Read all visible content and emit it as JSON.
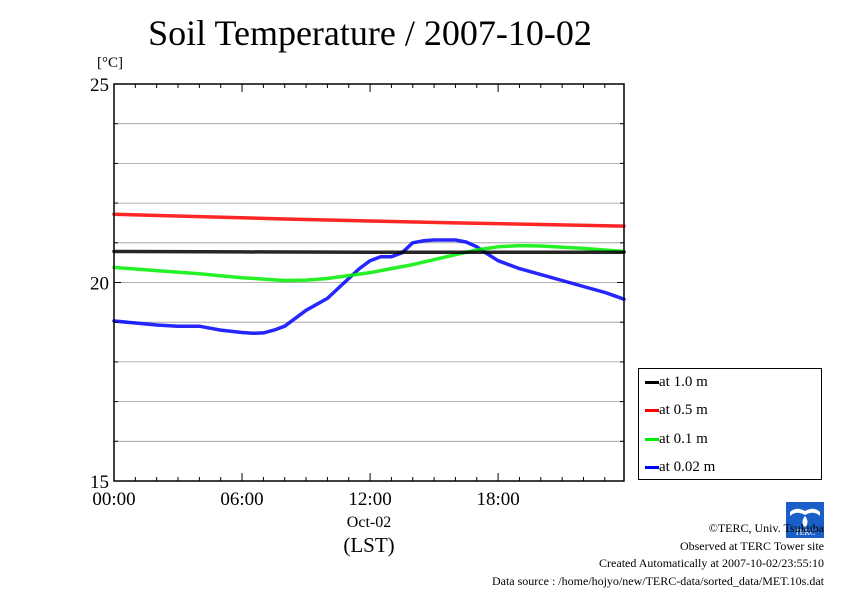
{
  "header": {
    "title": "Soil Temperature / 2007-10-02",
    "unit": "[°C]"
  },
  "chart_data": {
    "type": "line",
    "title": "Soil Temperature / 2007-10-02",
    "ylabel": "[°C]",
    "xlabel": "(LST)",
    "date_label": "Oct-02",
    "xlim": [
      0,
      23.9
    ],
    "ylim": [
      15,
      25
    ],
    "x_ticks": [
      {
        "value": 0,
        "label": "00:00"
      },
      {
        "value": 6,
        "label": "06:00"
      },
      {
        "value": 12,
        "label": "12:00"
      },
      {
        "value": 18,
        "label": "18:00"
      }
    ],
    "y_ticks": [
      {
        "value": 15,
        "label": "15"
      },
      {
        "value": 20,
        "label": "20"
      },
      {
        "value": 25,
        "label": "25"
      }
    ],
    "grid": true,
    "legend_position": "bottom-right, outside plot",
    "series": [
      {
        "name": "at 1.0 m",
        "color": "#000000",
        "x": [
          0,
          6,
          12,
          18,
          23.9
        ],
        "values": [
          20.78,
          20.77,
          20.76,
          20.76,
          20.76
        ]
      },
      {
        "name": "at 0.5 m",
        "color": "#ff0000",
        "x": [
          0,
          4,
          8,
          12,
          16,
          20,
          23.9
        ],
        "values": [
          21.72,
          21.66,
          21.6,
          21.55,
          21.5,
          21.46,
          21.42
        ]
      },
      {
        "name": "at 0.1 m",
        "color": "#00ee00",
        "x": [
          0,
          2,
          4,
          6,
          8,
          9,
          10,
          12,
          14,
          16,
          17,
          18,
          19,
          20,
          22,
          23.9
        ],
        "values": [
          20.38,
          20.3,
          20.22,
          20.12,
          20.05,
          20.06,
          20.1,
          20.25,
          20.45,
          20.7,
          20.82,
          20.9,
          20.93,
          20.92,
          20.86,
          20.78
        ]
      },
      {
        "name": "at 0.02 m",
        "color": "#0000ff",
        "x": [
          0,
          1,
          2,
          3,
          4,
          4.5,
          5,
          6,
          6.5,
          7,
          7.5,
          8,
          9,
          10,
          11,
          11.5,
          12,
          12.5,
          13,
          13.5,
          14,
          14.5,
          15,
          15.5,
          16,
          16.5,
          17,
          17.5,
          18,
          19,
          20,
          21,
          22,
          23,
          23.9
        ],
        "values": [
          19.03,
          18.98,
          18.93,
          18.9,
          18.9,
          18.85,
          18.8,
          18.74,
          18.72,
          18.73,
          18.8,
          18.9,
          19.3,
          19.6,
          20.1,
          20.35,
          20.55,
          20.65,
          20.65,
          20.75,
          21.0,
          21.05,
          21.07,
          21.07,
          21.07,
          21.02,
          20.9,
          20.72,
          20.55,
          20.35,
          20.2,
          20.05,
          19.9,
          19.75,
          19.58
        ]
      }
    ]
  },
  "credits": {
    "copyright": "©TERC, Univ. Tsukuba",
    "observed": "Observed at TERC Tower site",
    "created": "Created Automatically at 2007-10-02/23:55:10",
    "source": "Data source : /home/hojyo/new/TERC-data/sorted_data/MET.10s.dat"
  },
  "logo": {
    "text": "TERC",
    "color": "#1a5fc8"
  }
}
